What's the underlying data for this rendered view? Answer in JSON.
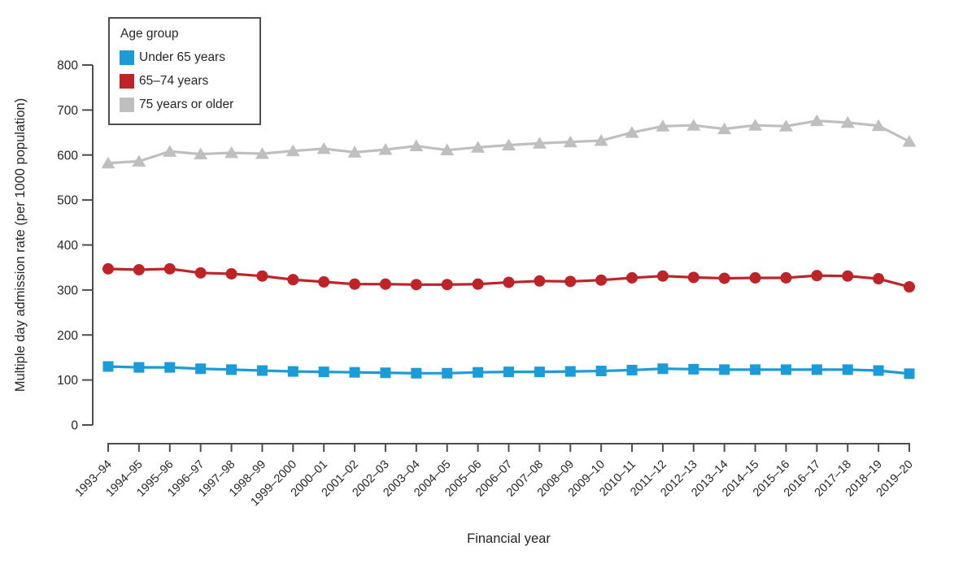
{
  "figure": {
    "background": "#ffffff",
    "text_color": "#262626",
    "axis_color": "#4d4d4d"
  },
  "chart_data": {
    "type": "line",
    "title": "",
    "xlabel": "Financial year",
    "ylabel": "Multiple day admission rate (per 1000 population)",
    "ylim": [
      0,
      800
    ],
    "yticks": [
      0,
      100,
      200,
      300,
      400,
      500,
      600,
      700,
      800
    ],
    "grid": false,
    "legend": {
      "title": "Age group",
      "position": "top-left"
    },
    "categories": [
      "1993–94",
      "1994–95",
      "1995–96",
      "1996–97",
      "1997–98",
      "1998–99",
      "1999–2000",
      "2000–01",
      "2001–02",
      "2002–03",
      "2003–04",
      "2004–05",
      "2005–06",
      "2006–07",
      "2007–08",
      "2008–09",
      "2009–10",
      "2010–11",
      "2011–12",
      "2012–13",
      "2013–14",
      "2014–15",
      "2015–16",
      "2016–17",
      "2017–18",
      "2018–19",
      "2019–20"
    ],
    "series": [
      {
        "name": "Under 65 years",
        "color": "#1b9bd8",
        "marker": "square",
        "values": [
          130,
          128,
          128,
          125,
          123,
          121,
          119,
          118,
          117,
          116,
          115,
          115,
          117,
          118,
          118,
          119,
          120,
          122,
          125,
          124,
          123,
          123,
          123,
          123,
          123,
          121,
          114
        ]
      },
      {
        "name": "65–74 years",
        "color": "#be2327",
        "marker": "circle",
        "values": [
          347,
          345,
          347,
          338,
          336,
          331,
          323,
          318,
          313,
          313,
          312,
          312,
          313,
          317,
          320,
          319,
          322,
          327,
          331,
          328,
          326,
          327,
          327,
          332,
          331,
          325,
          307
        ]
      },
      {
        "name": "75 years or older",
        "color": "#bfbfbf",
        "marker": "triangle",
        "values": [
          582,
          586,
          608,
          602,
          605,
          603,
          609,
          614,
          606,
          612,
          620,
          611,
          617,
          622,
          626,
          629,
          632,
          650,
          664,
          666,
          658,
          666,
          664,
          676,
          672,
          665,
          630
        ]
      }
    ]
  }
}
